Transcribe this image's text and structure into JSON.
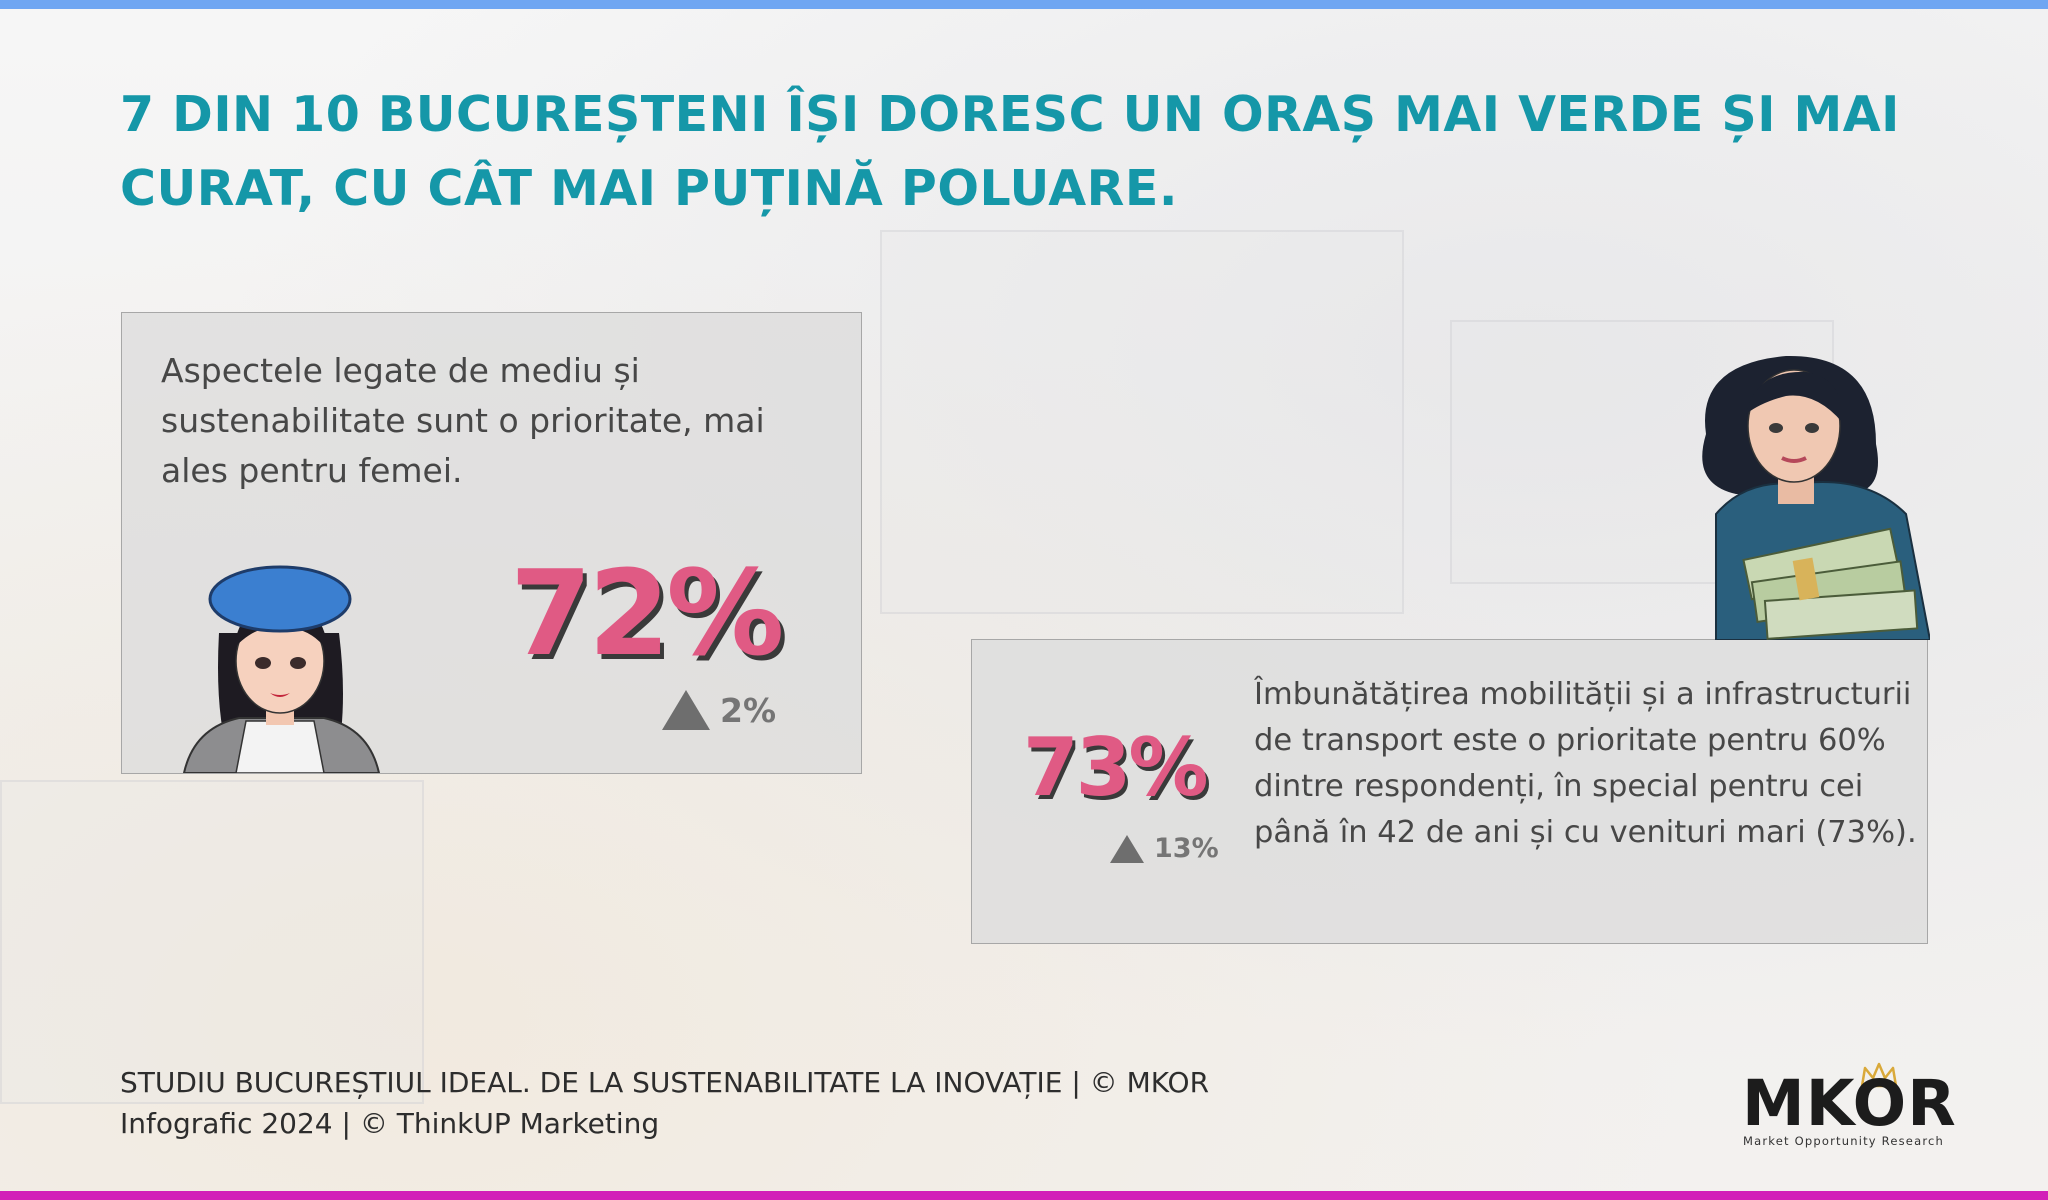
{
  "headline": {
    "line1": "7 DIN 10 BUCUREȘTENI ÎȘI DORESC UN ORAȘ MAI VERDE ȘI MAI",
    "line2": "CURAT, CU CÂT MAI PUȚINĂ POLUARE."
  },
  "card_environment": {
    "text": "Aspectele legate de mediu și sustenabilitate sunt o prioritate, mai ales pentru femei.",
    "percent": "72%",
    "delta": "2%",
    "delta_icon": "triangle-up-icon"
  },
  "card_mobility": {
    "text": "Îmbunătățirea mobilității și a infrastructurii de transport este o prioritate pentru 60% dintre respondenți, în special pentru cei până în 42 de ani și cu venituri mari (73%).",
    "percent": "73%",
    "delta": "13%",
    "delta_icon": "triangle-up-icon"
  },
  "footer": {
    "line1": "STUDIU BUCUREȘTIUL IDEAL. DE LA SUSTENABILITATE LA INOVAȚIE | © MKOR",
    "line2": "Infografic 2024 | © ThinkUP Marketing"
  },
  "logo": {
    "word": "MKOR",
    "tagline": "Market Opportunity Research"
  },
  "colors": {
    "headline": "#1597a8",
    "percent": "#e05a84",
    "top_bar": "#6fa6f2",
    "bottom_bar": "#d21fb8"
  }
}
